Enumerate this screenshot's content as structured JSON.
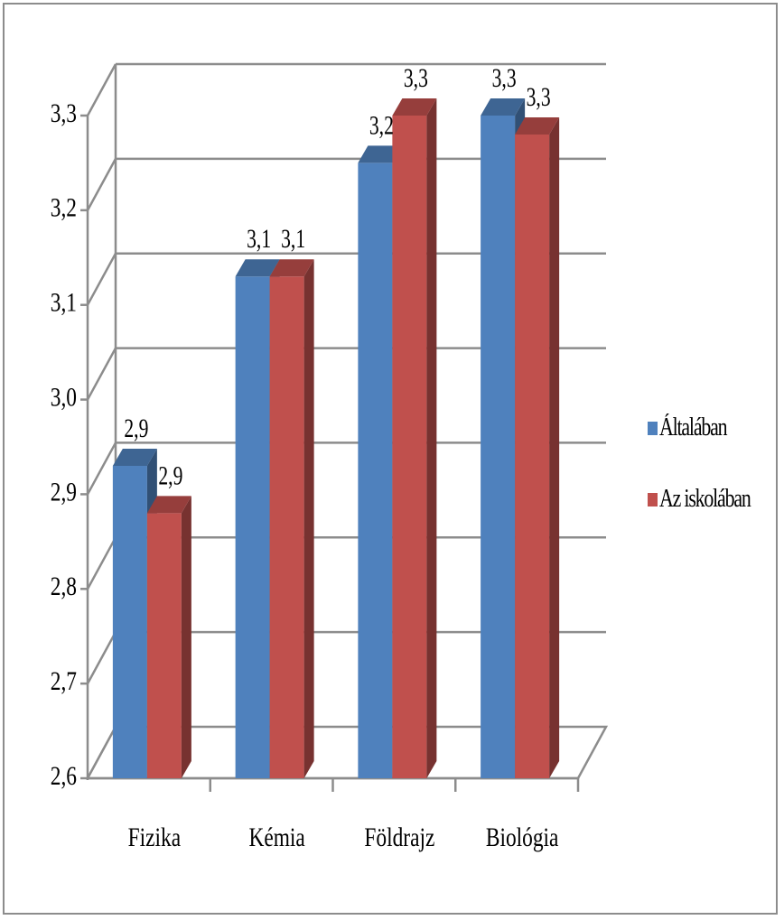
{
  "chart_data": {
    "type": "bar",
    "categories": [
      "Fizika",
      "Kémia",
      "Földrajz",
      "Biológia"
    ],
    "series": [
      {
        "name": "Általában",
        "values": [
          2.93,
          3.13,
          3.25,
          3.3
        ],
        "data_labels": [
          "2,9",
          "3,1",
          "3,2",
          "3,3"
        ],
        "color": "#4f81bd"
      },
      {
        "name": "Az iskolában",
        "values": [
          2.88,
          3.13,
          3.3,
          3.28
        ],
        "data_labels": [
          "2,9",
          "3,1",
          "3,3",
          "3,3"
        ],
        "color": "#c0504d"
      }
    ],
    "ylim": [
      2.6,
      3.3
    ],
    "yticks": [
      2.6,
      2.7,
      2.8,
      2.9,
      3.0,
      3.1,
      3.2,
      3.3
    ],
    "ytick_labels": [
      "2,6",
      "2,7",
      "2,8",
      "2,9",
      "3,0",
      "3,1",
      "3,2",
      "3,3"
    ],
    "title": "",
    "xlabel": "",
    "ylabel": "",
    "grid": true,
    "legend": "right",
    "style": "3d-column"
  }
}
